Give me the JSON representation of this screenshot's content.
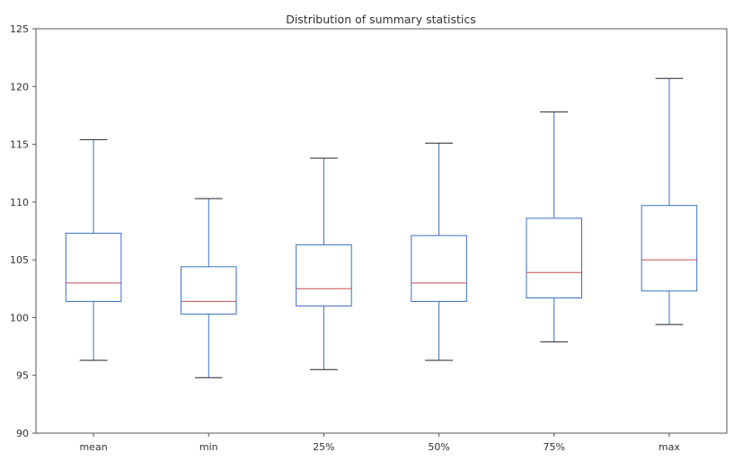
{
  "chart_data": {
    "type": "box",
    "title": "Distribution of summary statistics",
    "xlabel": "",
    "ylabel": "",
    "ylim": [
      90,
      125
    ],
    "y_ticks": [
      90,
      95,
      100,
      105,
      110,
      115,
      120,
      125
    ],
    "grid": false,
    "categories": [
      "mean",
      "min",
      "25%",
      "50%",
      "75%",
      "max"
    ],
    "boxes": [
      {
        "label": "mean",
        "whisker_low": 96.3,
        "q1": 101.4,
        "median": 103.0,
        "q3": 107.3,
        "whisker_high": 115.4
      },
      {
        "label": "min",
        "whisker_low": 94.8,
        "q1": 100.3,
        "median": 101.4,
        "q3": 104.4,
        "whisker_high": 110.3
      },
      {
        "label": "25%",
        "whisker_low": 95.5,
        "q1": 101.0,
        "median": 102.5,
        "q3": 106.3,
        "whisker_high": 113.8
      },
      {
        "label": "50%",
        "whisker_low": 96.3,
        "q1": 101.4,
        "median": 103.0,
        "q3": 107.1,
        "whisker_high": 115.1
      },
      {
        "label": "75%",
        "whisker_low": 97.9,
        "q1": 101.7,
        "median": 103.9,
        "q3": 108.6,
        "whisker_high": 117.8
      },
      {
        "label": "max",
        "whisker_low": 99.4,
        "q1": 102.3,
        "median": 105.0,
        "q3": 109.7,
        "whisker_high": 120.7
      }
    ],
    "colors": {
      "box": "#3a6fc4",
      "whisker": "#3a6fc4",
      "cap": "#222222",
      "median": "#c44e52",
      "axis": "#555555"
    }
  }
}
